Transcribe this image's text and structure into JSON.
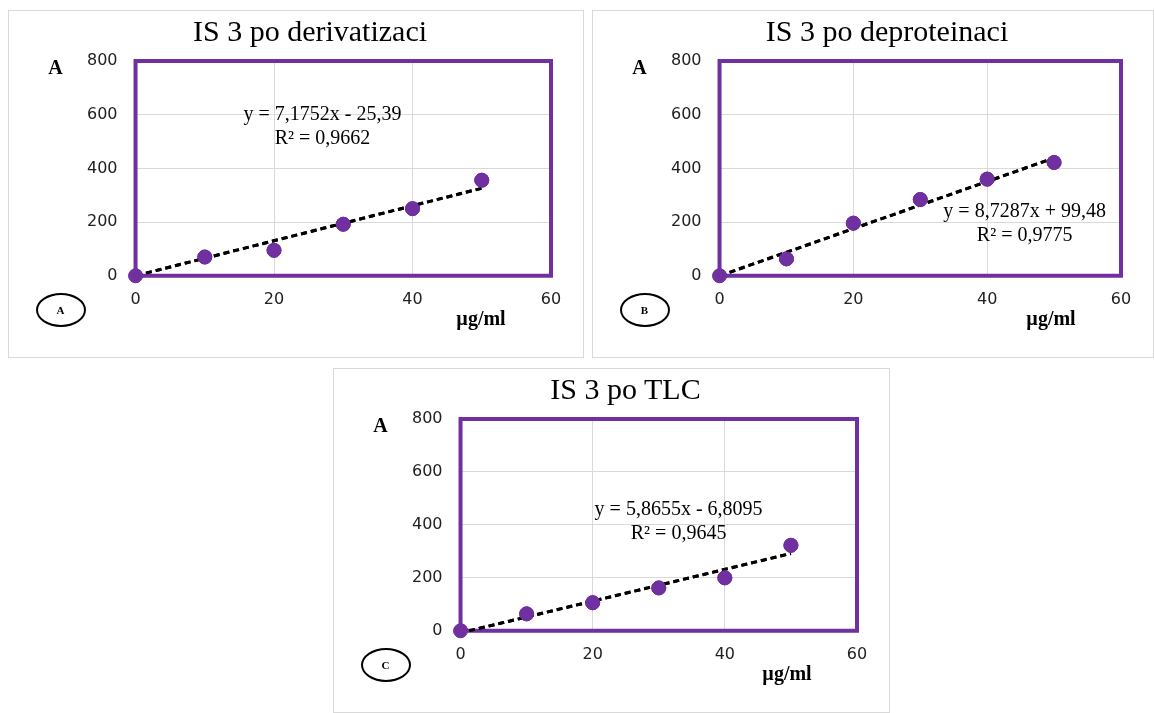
{
  "chart_data": [
    {
      "type": "scatter",
      "title": "IS 3 po derivatizaci",
      "xlabel": "µg/ml",
      "ylabel": "A",
      "xlim": [
        0,
        60
      ],
      "xticks": [
        0,
        20,
        40,
        60
      ],
      "ylim": [
        0,
        800
      ],
      "yticks": [
        0,
        200,
        400,
        600,
        800
      ],
      "grid": true,
      "marker": "circle",
      "series": [
        {
          "type": "scatter",
          "color": "#7030a0",
          "x": [
            0,
            10,
            20,
            30,
            40,
            50
          ],
          "values": [
            0,
            70,
            95,
            192,
            250,
            356
          ]
        },
        {
          "type": "line",
          "color": "#000000",
          "line_style": "dashed",
          "marker": "none",
          "x": [
            1.5,
            50
          ],
          "values": [
            10,
            326
          ]
        }
      ],
      "annotations": [
        "y = 7,1752x - 25,39",
        "R² = 0,9662",
        "A"
      ]
    },
    {
      "type": "scatter",
      "title": "IS 3 po deproteinaci",
      "xlabel": "µg/ml",
      "ylabel": "A",
      "xlim": [
        0,
        60
      ],
      "xticks": [
        0,
        20,
        40,
        60
      ],
      "ylim": [
        0,
        800
      ],
      "yticks": [
        0,
        200,
        400,
        600,
        800
      ],
      "grid": true,
      "marker": "circle",
      "series": [
        {
          "type": "scatter",
          "color": "#7030a0",
          "x": [
            0,
            10,
            20,
            30,
            40,
            50
          ],
          "values": [
            0,
            63,
            196,
            284,
            360,
            422
          ]
        },
        {
          "type": "line",
          "color": "#000000",
          "line_style": "dashed",
          "marker": "none",
          "x": [
            1.5,
            50
          ],
          "values": [
            13,
            439
          ]
        }
      ],
      "annotations": [
        "y = 8,7287x + 99,48",
        "R² = 0,9775",
        "B"
      ]
    },
    {
      "type": "scatter",
      "title": "IS 3 po TLC",
      "xlabel": "µg/ml",
      "ylabel": "A",
      "xlim": [
        0,
        60
      ],
      "xticks": [
        0,
        20,
        40,
        60
      ],
      "ylim": [
        0,
        800
      ],
      "yticks": [
        0,
        200,
        400,
        600,
        800
      ],
      "grid": true,
      "marker": "circle",
      "series": [
        {
          "type": "scatter",
          "color": "#7030a0",
          "x": [
            0,
            10,
            20,
            30,
            40,
            50
          ],
          "values": [
            0,
            64,
            106,
            162,
            200,
            323
          ]
        },
        {
          "type": "line",
          "color": "#000000",
          "line_style": "dashed",
          "marker": "none",
          "x": [
            1.3,
            50
          ],
          "values": [
            0,
            292
          ]
        }
      ],
      "annotations": [
        "y = 5,8655x - 6,8095",
        "R² = 0,9645",
        "C"
      ]
    }
  ]
}
